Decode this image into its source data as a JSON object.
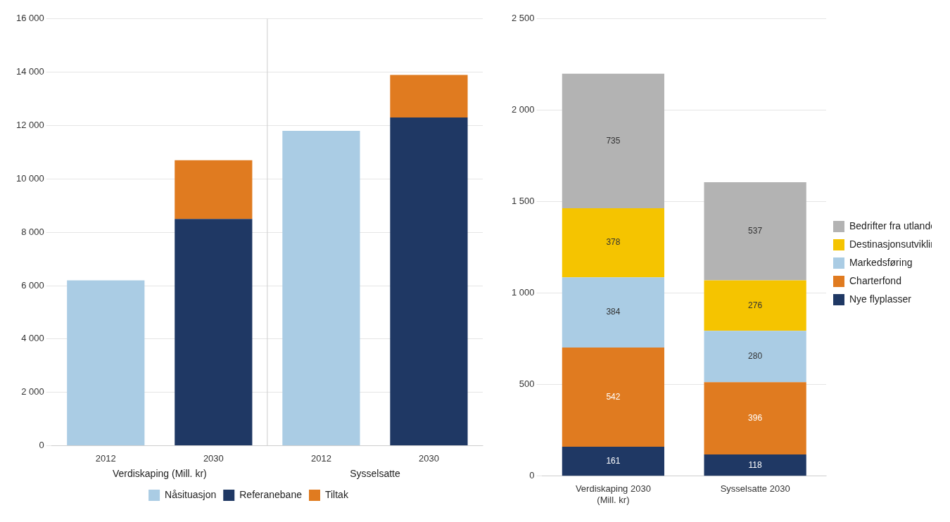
{
  "chart_data": [
    {
      "type": "bar",
      "stacked": true,
      "categories": [
        "2012",
        "2030",
        "2012",
        "2030"
      ],
      "annotations": [
        "Verdiskaping (Mill. kr)",
        "Sysselsatte"
      ],
      "series": [
        {
          "name": "Nåsituasjon",
          "color": "#aacce4",
          "values": [
            6200,
            0,
            11800,
            0
          ]
        },
        {
          "name": "Referanebane",
          "color": "#1f3864",
          "values": [
            0,
            8500,
            0,
            12300
          ]
        },
        {
          "name": "Tiltak",
          "color": "#e07b20",
          "values": [
            0,
            2200,
            0,
            1600
          ]
        }
      ],
      "ylim": [
        0,
        16000
      ],
      "yticks": [
        0,
        {
          "value": 2000,
          "label": "2 000"
        },
        {
          "value": 4000,
          "label": "4 000"
        },
        {
          "value": 6000,
          "label": "6 000"
        },
        {
          "value": 8000,
          "label": "8 000"
        },
        {
          "value": 10000,
          "label": "10 000"
        },
        {
          "value": 12000,
          "label": "12 000"
        },
        {
          "value": 14000,
          "label": "14 000"
        },
        {
          "value": 16000,
          "label": "16 000"
        }
      ],
      "grid": true,
      "legend": "bottom"
    },
    {
      "type": "bar",
      "stacked": true,
      "categories": [
        "Verdiskaping 2030\n(Mill. kr)",
        "Sysselsatte 2030"
      ],
      "series": [
        {
          "name": "Nye flyplasser",
          "color": "#1f3864",
          "values": [
            161,
            118
          ]
        },
        {
          "name": "Charterfond",
          "color": "#e07b20",
          "values": [
            542,
            396
          ]
        },
        {
          "name": "Markedsføring",
          "color": "#aacce4",
          "values": [
            384,
            280
          ]
        },
        {
          "name": "Destinasjonsutvikling",
          "color": "#f5c400",
          "values": [
            378,
            276
          ]
        },
        {
          "name": "Bedrifter fra utlandet",
          "color": "#b3b3b3",
          "values": [
            735,
            537
          ]
        }
      ],
      "ylim": [
        0,
        2500
      ],
      "yticks": [
        0,
        500,
        {
          "value": 1000,
          "label": "1 000"
        },
        {
          "value": 1500,
          "label": "1 500"
        },
        {
          "value": 2000,
          "label": "2 000"
        },
        {
          "value": 2500,
          "label": "2 500"
        }
      ],
      "grid": true,
      "legend": "right",
      "data_labels": true
    }
  ]
}
